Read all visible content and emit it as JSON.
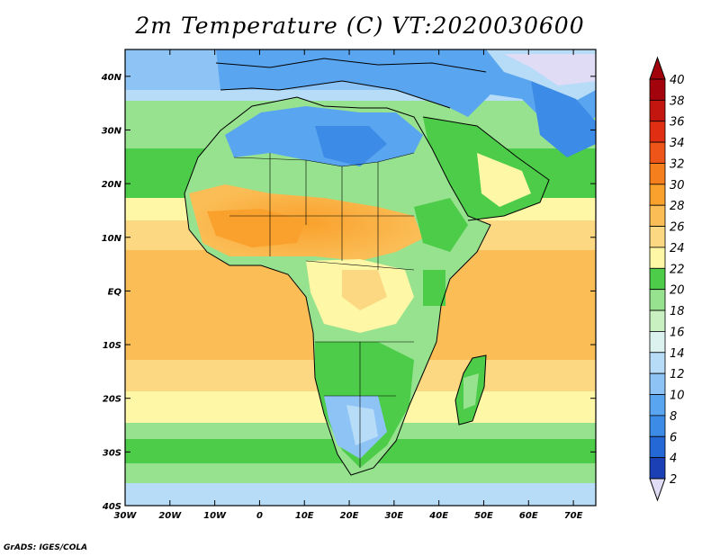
{
  "title": "2m Temperature (C) VT:2020030600",
  "credit": "GrADS: IGES/COLA",
  "map": {
    "lon_range": [
      -30,
      75
    ],
    "lat_range": [
      -40,
      45
    ],
    "x_ticks": [
      "30W",
      "20W",
      "10W",
      "0",
      "10E",
      "20E",
      "30E",
      "40E",
      "50E",
      "60E",
      "70E"
    ],
    "y_ticks": [
      "40N",
      "30N",
      "20N",
      "10N",
      "EQ",
      "10S",
      "20S",
      "30S",
      "40S"
    ]
  },
  "colorbar": {
    "labels": [
      "2",
      "4",
      "6",
      "8",
      "10",
      "12",
      "14",
      "16",
      "18",
      "20",
      "22",
      "24",
      "26",
      "28",
      "30",
      "32",
      "34",
      "36",
      "38",
      "40"
    ],
    "colors": [
      "#0d1d7a",
      "#1b3fb5",
      "#2468d6",
      "#3c8be6",
      "#5aa5f0",
      "#8dc3f5",
      "#b7dcf8",
      "#dcf2ef",
      "#c8f0c0",
      "#96e28e",
      "#4ccc48",
      "#fdf7a6",
      "#fcd883",
      "#fbbd56",
      "#f9a12c",
      "#f57f1c",
      "#ee5518",
      "#e02e13",
      "#c41610",
      "#a3030d"
    ],
    "under_color": "#e1dcf6",
    "over_color": "#a3030d"
  }
}
